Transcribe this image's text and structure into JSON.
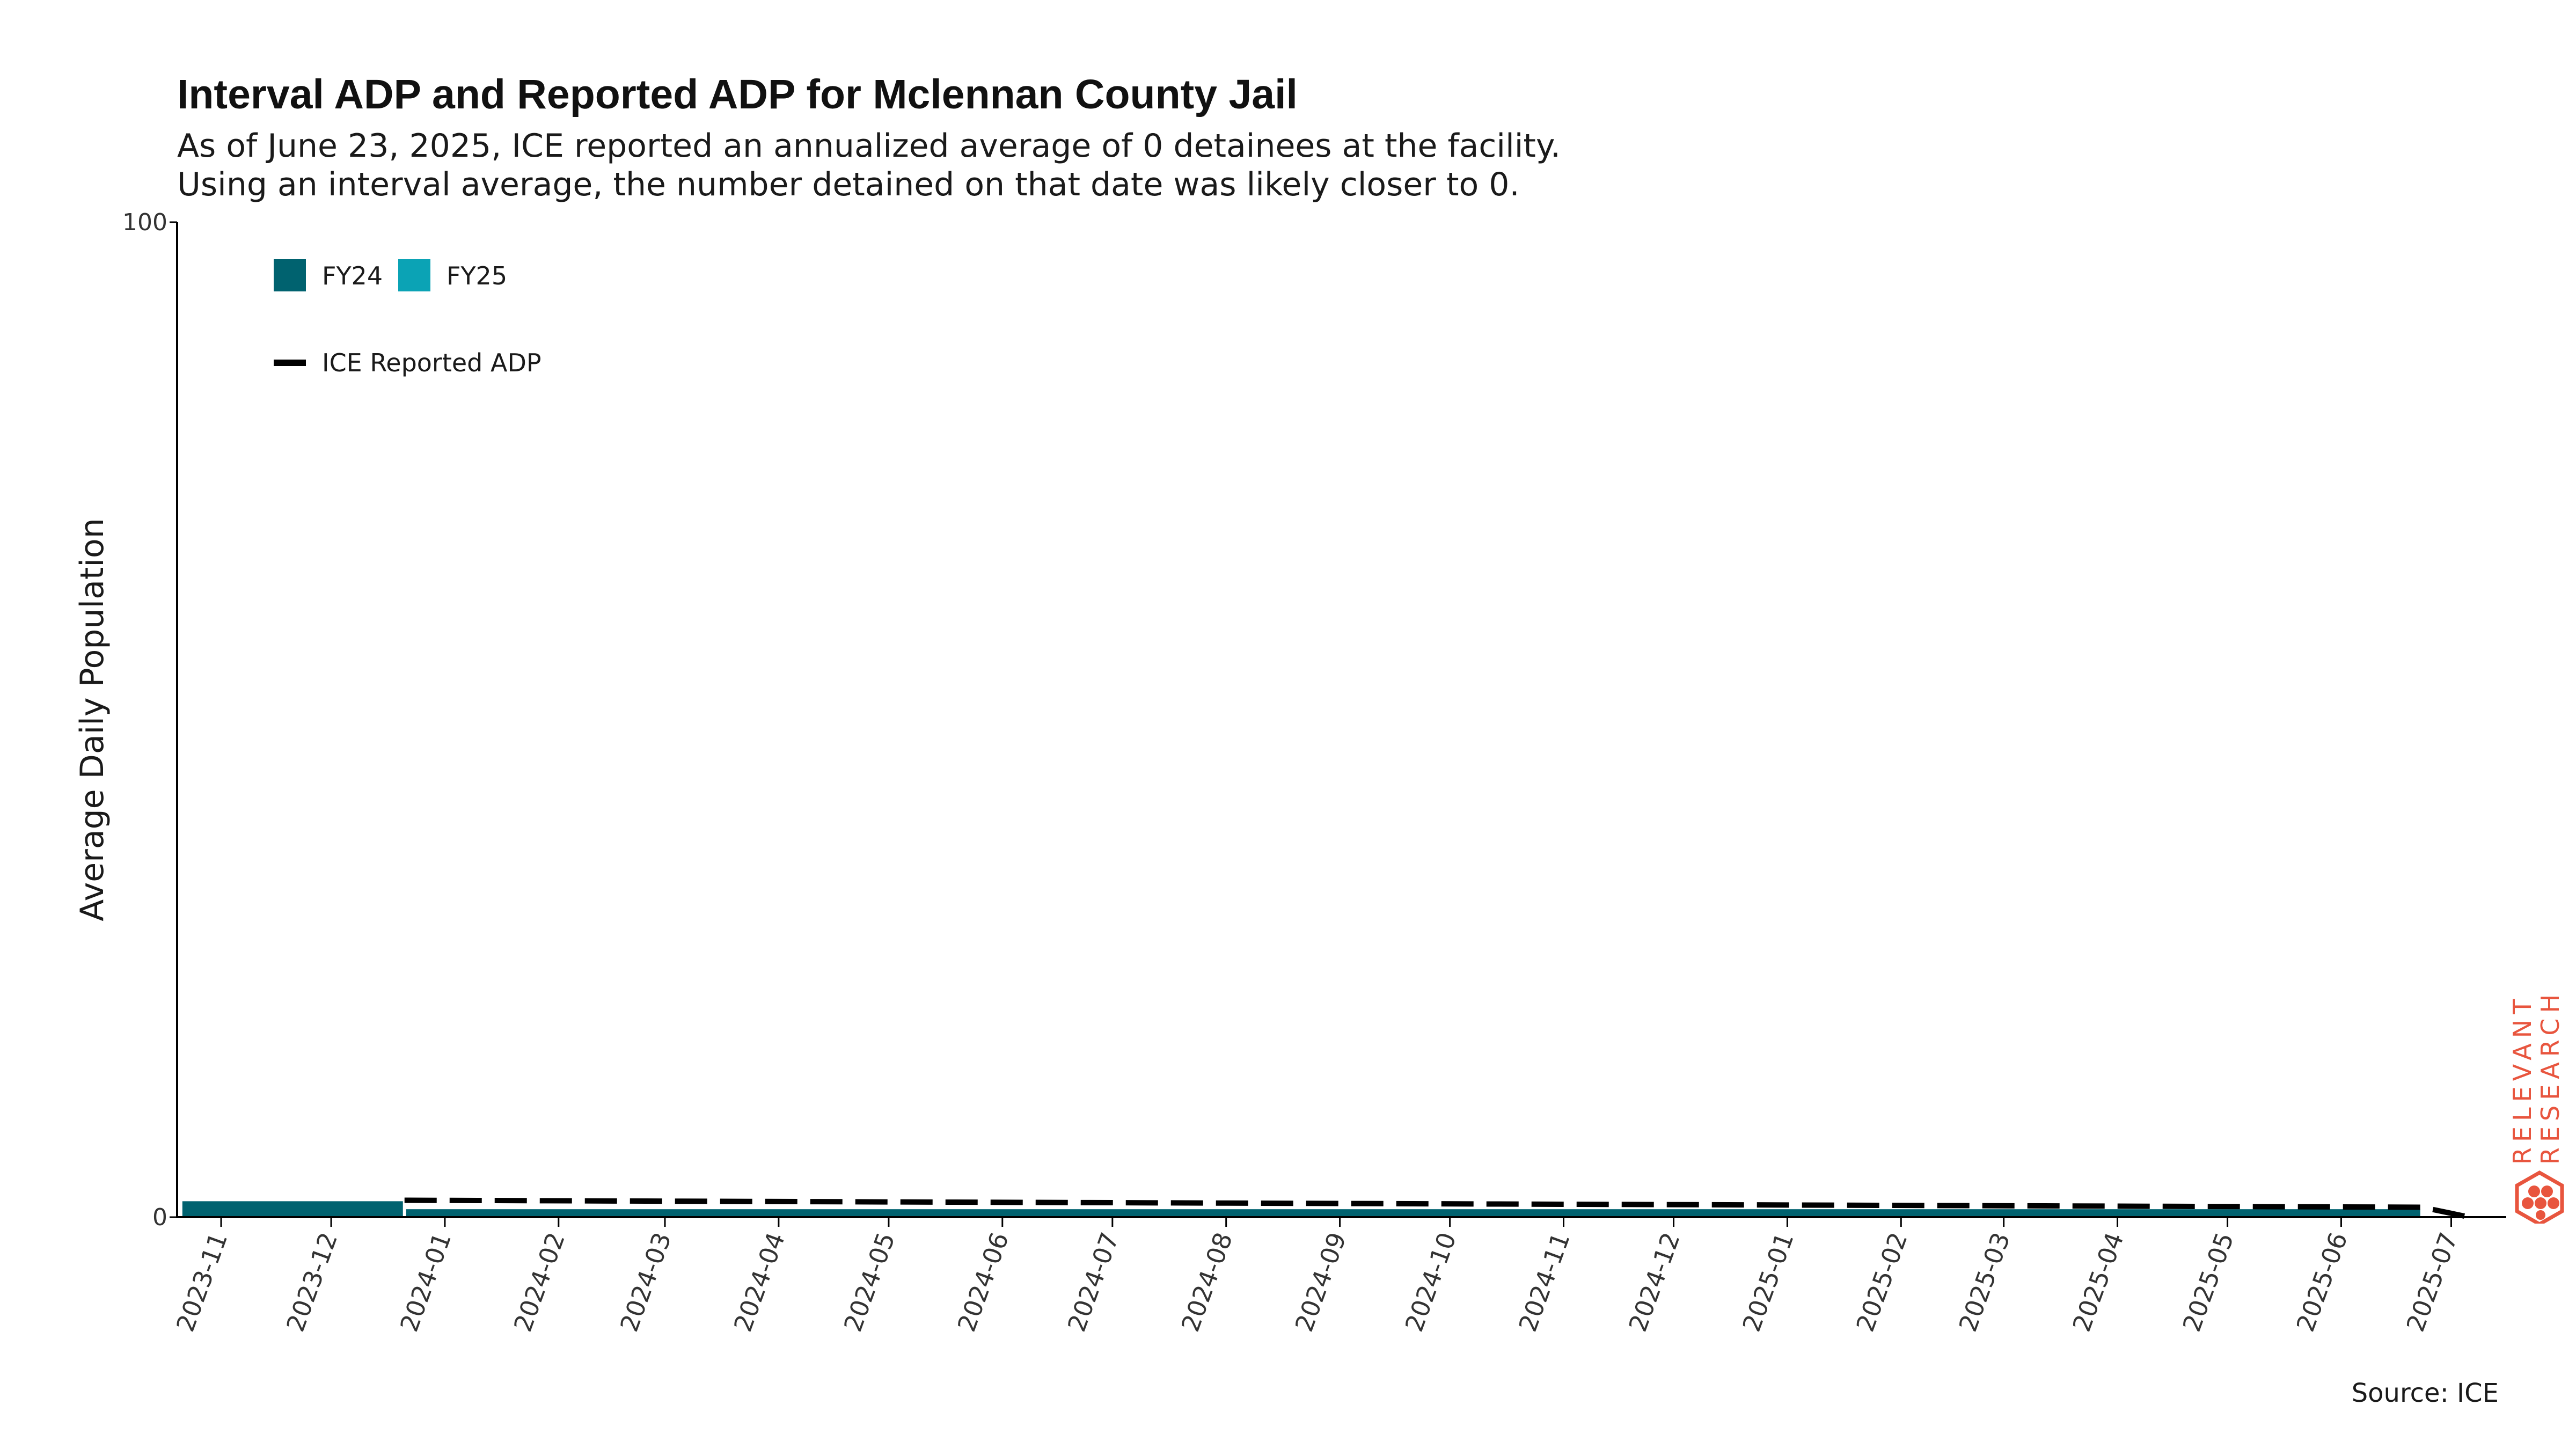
{
  "title": "Interval ADP and Reported ADP for Mclennan County Jail",
  "subtitle": [
    "As of June 23, 2025, ICE reported an annualized average of 0 detainees at the facility.",
    "Using an interval average, the number detained on that date was likely closer to 0."
  ],
  "source": "Source: ICE",
  "logo": {
    "line1": "RELEVANT",
    "line2": "RESEARCH",
    "color": "#e8553e"
  },
  "colors": {
    "fy24": "#00626f",
    "fy25": "#0ba3b5",
    "reported_line": "#000000",
    "axis": "#000000"
  },
  "chart_data": {
    "type": "bar",
    "ylabel": "Average Daily Population",
    "ylim": [
      0,
      100
    ],
    "yticks": [
      0,
      100
    ],
    "xlim": [
      "2023-10-20",
      "2025-07-16"
    ],
    "xticks": [
      "2023-11",
      "2023-12",
      "2024-01",
      "2024-02",
      "2024-03",
      "2024-04",
      "2024-05",
      "2024-06",
      "2024-07",
      "2024-08",
      "2024-09",
      "2024-10",
      "2024-11",
      "2024-12",
      "2025-01",
      "2025-02",
      "2025-03",
      "2025-04",
      "2025-05",
      "2025-06",
      "2025-07"
    ],
    "legend": {
      "bars": [
        "FY24",
        "FY25"
      ],
      "line": "ICE Reported ADP",
      "position": "top-left"
    },
    "bars": [
      {
        "series": "FY24",
        "start": "2023-10-21",
        "end": "2023-12-21",
        "value": 1.6
      },
      {
        "series": "FY24",
        "start": "2023-12-21",
        "end": "2025-06-23",
        "value": 0.8
      }
    ],
    "line": {
      "name": "ICE Reported ADP",
      "points": [
        {
          "x": "2023-12-21",
          "y": 1.7
        },
        {
          "x": "2025-06-23",
          "y": 1.0
        },
        {
          "x": "2025-07-06",
          "y": 0.0
        }
      ]
    }
  }
}
